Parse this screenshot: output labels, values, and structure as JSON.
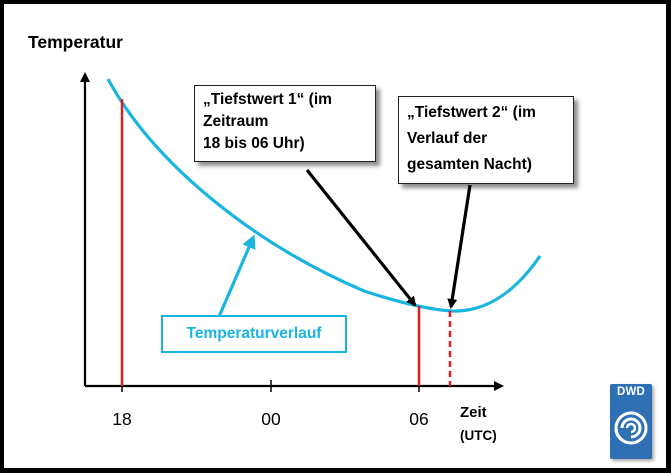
{
  "y_axis_label": "Temperatur",
  "x_axis_label_line1": "Zeit",
  "x_axis_label_line2": "(UTC)",
  "x_ticks": [
    "18",
    "00",
    "06"
  ],
  "callout_1": {
    "lines": [
      "„Tiefstwert 1“ (im",
      "Zeitraum",
      "18 bis 06 Uhr)"
    ]
  },
  "callout_2": {
    "lines": [
      "„Tiefstwert 2“ (im",
      "Verlauf der",
      "gesamten Nacht)"
    ]
  },
  "curve_label": "Temperaturverlauf",
  "logo": {
    "text": "DWD",
    "icon": "dwd-swirl-icon"
  },
  "colors": {
    "curve": "#19b4e0",
    "markers": "#e02020",
    "axis": "#000000",
    "logo_background": "#2f6fb3"
  }
}
